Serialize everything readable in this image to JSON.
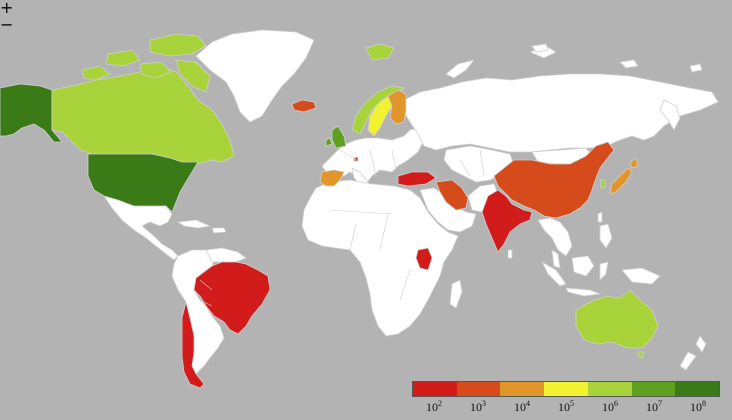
{
  "zoom": {
    "in_label": "+",
    "out_label": "−"
  },
  "legend": {
    "base": "10",
    "exponents": [
      "2",
      "3",
      "4",
      "5",
      "6",
      "7",
      "8"
    ],
    "colors": [
      "#d21c1c",
      "#d64b1c",
      "#e0962a",
      "#f2f231",
      "#a9d33a",
      "#5fa021",
      "#3a7a17"
    ]
  },
  "colors": {
    "ocean": "#b3b3b3",
    "no_data": "#ffffff",
    "level_2": "#d21c1c",
    "level_3": "#d64b1c",
    "level_4": "#e0962a",
    "level_5": "#f2f231",
    "level_6": "#a9d33a",
    "level_7": "#5fa021",
    "level_8": "#3a7a17"
  },
  "countries": [
    {
      "name": "Alaska (United States)",
      "level": "level_8"
    },
    {
      "name": "United States",
      "level": "level_8"
    },
    {
      "name": "Canada",
      "level": "level_6"
    },
    {
      "name": "Greenland",
      "level": "no_data"
    },
    {
      "name": "Brazil",
      "level": "level_2"
    },
    {
      "name": "Chile",
      "level": "level_2"
    },
    {
      "name": "Iceland",
      "level": "level_3"
    },
    {
      "name": "United Kingdom",
      "level": "level_7"
    },
    {
      "name": "Norway",
      "level": "level_6"
    },
    {
      "name": "Sweden",
      "level": "level_5"
    },
    {
      "name": "Finland",
      "level": "level_4"
    },
    {
      "name": "Spain",
      "level": "level_4"
    },
    {
      "name": "Turkey",
      "level": "level_2"
    },
    {
      "name": "Iran",
      "level": "level_3"
    },
    {
      "name": "India",
      "level": "level_2"
    },
    {
      "name": "China",
      "level": "level_3"
    },
    {
      "name": "Japan",
      "level": "level_4"
    },
    {
      "name": "South Korea",
      "level": "level_6"
    },
    {
      "name": "Kenya",
      "level": "level_2"
    },
    {
      "name": "Australia",
      "level": "level_6"
    },
    {
      "name": "Svalbard (Norway)",
      "level": "level_6"
    }
  ]
}
